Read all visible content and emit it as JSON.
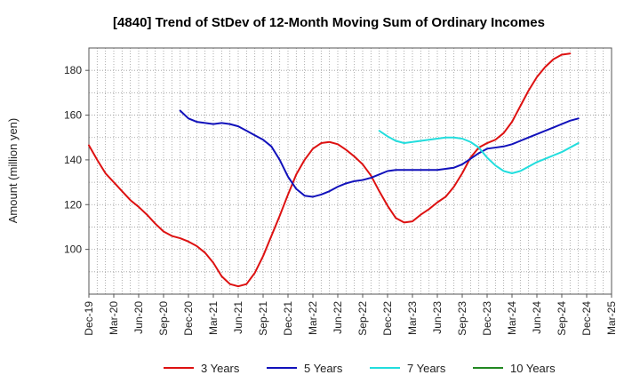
{
  "chart_data": {
    "type": "line",
    "title": "[4840]  Trend of StDev of 12-Month Moving Sum of Ordinary Incomes",
    "ylabel": "Amount (million yen)",
    "xlabel": "",
    "x_start": "Dec-19",
    "x_end": "Mar-25",
    "ylim": [
      80,
      190
    ],
    "yticks": [
      100,
      120,
      140,
      160,
      180
    ],
    "xticks": [
      "Dec-19",
      "Mar-20",
      "Jun-20",
      "Sep-20",
      "Dec-20",
      "Mar-21",
      "Jun-21",
      "Sep-21",
      "Dec-21",
      "Mar-22",
      "Jun-22",
      "Sep-22",
      "Dec-22",
      "Mar-23",
      "Jun-23",
      "Sep-23",
      "Dec-23",
      "Mar-24",
      "Jun-24",
      "Sep-24",
      "Dec-24",
      "Mar-25"
    ],
    "grid": true,
    "legend_position": "bottom",
    "series": [
      {
        "name": "3 Years",
        "color": "#dd1111",
        "start_label": "Dec-19",
        "values": [
          146.5,
          140,
          134,
          130,
          126,
          122,
          119,
          115.5,
          111.5,
          108,
          106,
          105,
          103.5,
          101.5,
          98.5,
          94,
          88,
          84.5,
          83.5,
          84.5,
          89.5,
          97,
          106,
          115,
          124.5,
          133.5,
          140,
          145,
          147.5,
          148,
          147,
          144.5,
          141.5,
          138,
          133,
          126,
          119.5,
          114,
          112,
          112.5,
          115.5,
          118,
          121,
          123.5,
          128,
          134,
          141,
          145.5,
          147.5,
          149,
          152,
          157,
          164,
          171,
          177,
          181.5,
          185,
          187,
          187.5
        ]
      },
      {
        "name": "5 Years",
        "color": "#1111bb",
        "start_label": "Nov-20",
        "values": [
          162,
          158.5,
          157,
          156.5,
          156,
          156.5,
          156,
          155,
          153,
          151,
          149,
          146,
          140,
          132.5,
          127,
          124,
          123.5,
          124.5,
          126,
          128,
          129.5,
          130.5,
          131,
          132,
          133.5,
          135,
          135.5,
          135.5,
          135.5,
          135.5,
          135.5,
          135.5,
          136,
          136.5,
          138,
          140.5,
          143,
          145,
          145.5,
          146,
          147,
          148.5,
          150,
          151.5,
          153,
          154.5,
          156,
          157.5,
          158.5
        ]
      },
      {
        "name": "7 Years",
        "color": "#22dddd",
        "start_label": "Nov-22",
        "values": [
          153,
          150.5,
          148.5,
          147.5,
          148,
          148.5,
          149,
          149.5,
          150,
          150,
          149.5,
          148,
          145.5,
          141,
          137.5,
          135,
          134,
          135,
          137,
          139,
          140.5,
          142,
          143.5,
          145.5,
          147.5
        ]
      },
      {
        "name": "10 Years",
        "color": "#228822",
        "start_label": "",
        "values": []
      }
    ]
  }
}
